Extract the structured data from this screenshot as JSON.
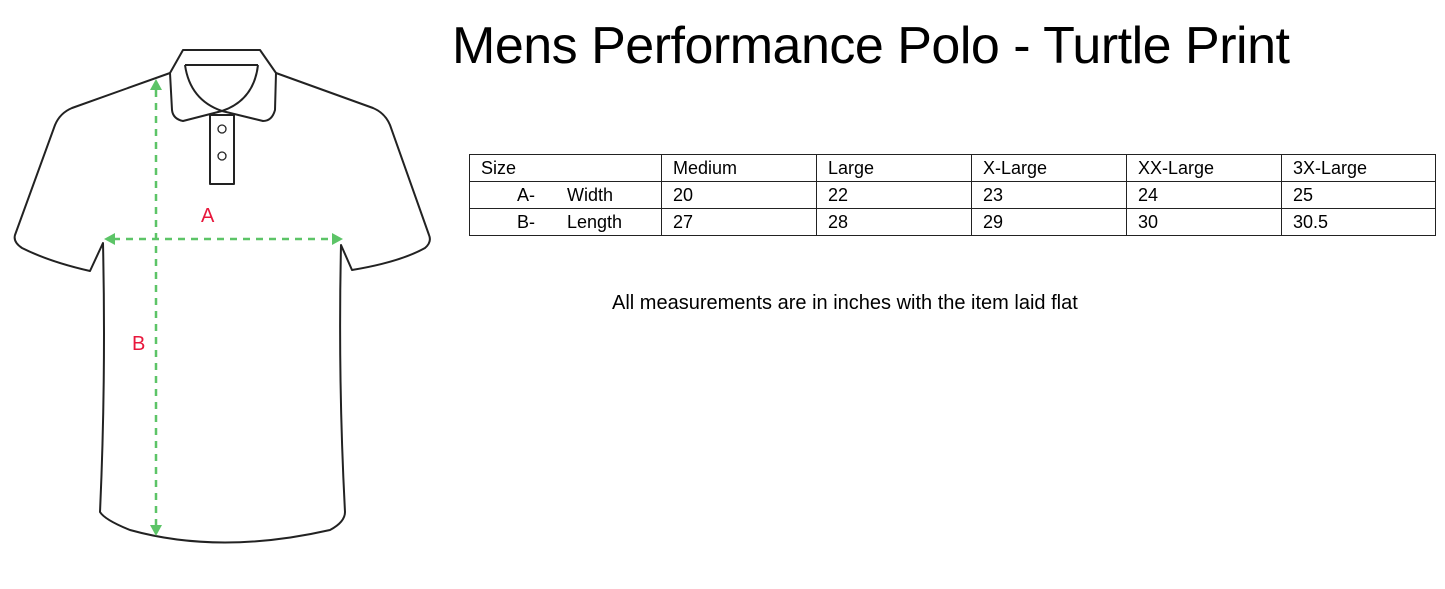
{
  "title": "Mens Performance Polo - Turtle Print",
  "diagram": {
    "label_a": "A",
    "label_b": "B",
    "arrow_color": "#5cc467",
    "label_color": "#e8173c"
  },
  "size_table": {
    "header": [
      "Size",
      "Medium",
      "Large",
      "X-Large",
      "XX-Large",
      "3X-Large"
    ],
    "rows": [
      {
        "code": "A-",
        "measure": "Width",
        "values": [
          "20",
          "22",
          "23",
          "24",
          "25"
        ]
      },
      {
        "code": "B-",
        "measure": "Length",
        "values": [
          "27",
          "28",
          "29",
          "30",
          "30.5"
        ]
      }
    ]
  },
  "note": "All measurements are in inches with the item laid flat"
}
